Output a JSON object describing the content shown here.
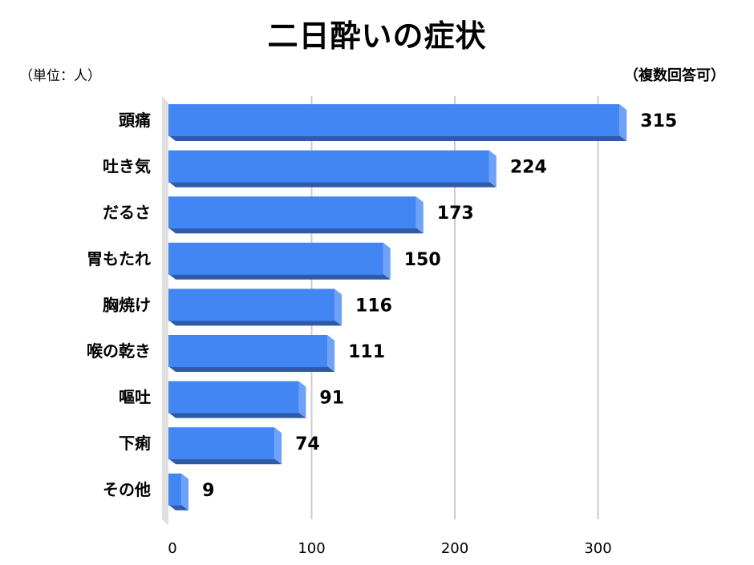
{
  "header": {
    "title": "二日酔いの症状",
    "unit_note": "（単位：人）",
    "answer_note": "（複数回答可）"
  },
  "chart_data": {
    "type": "bar",
    "orientation": "horizontal",
    "title": "二日酔いの症状",
    "categories": [
      "頭痛",
      "吐き気",
      "だるさ",
      "胃もたれ",
      "胸焼け",
      "喉の乾き",
      "嘔吐",
      "下痢",
      "その他"
    ],
    "values": [
      315,
      224,
      173,
      150,
      116,
      111,
      91,
      74,
      9
    ],
    "xlim": [
      0,
      350
    ],
    "xticks": [
      0,
      100,
      200,
      300
    ],
    "grid": true,
    "legend": "none",
    "bar_color": "#4286f4",
    "bar_shadow_color": "#2f5aa8"
  }
}
